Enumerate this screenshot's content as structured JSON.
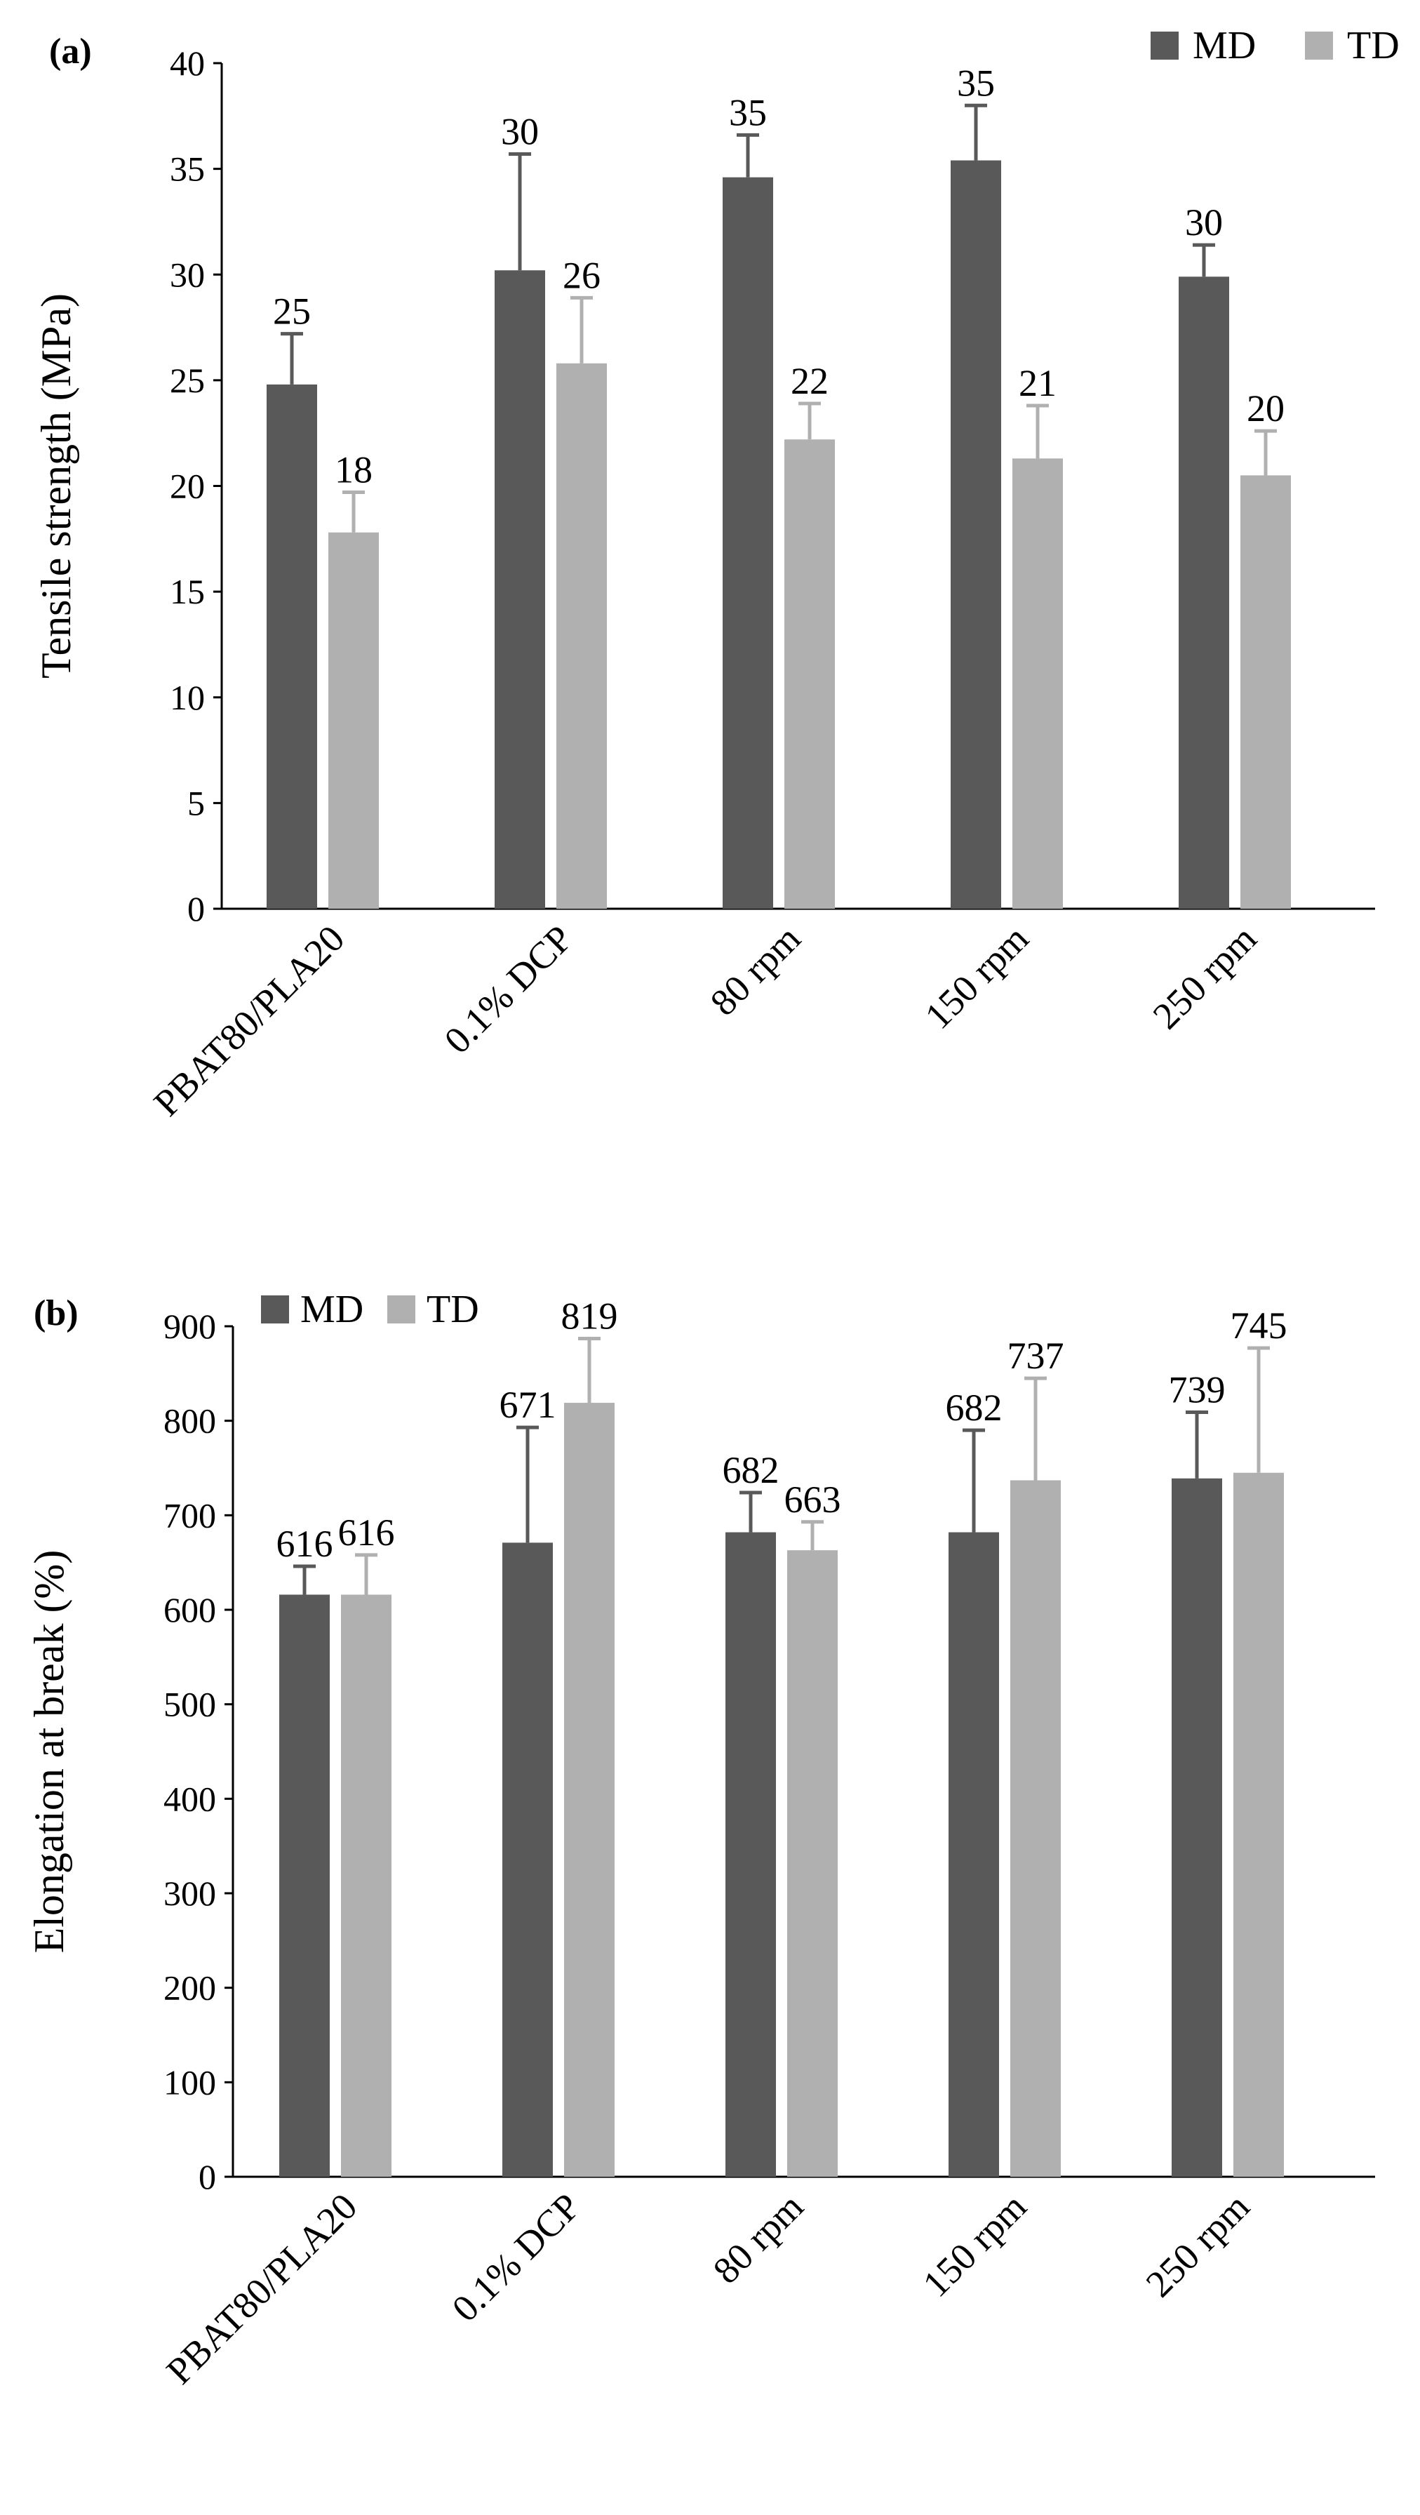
{
  "chart_data": [
    {
      "type": "bar",
      "panel_label": "(a)",
      "title": "",
      "ylabel": "Tensile strength (MPa)",
      "xlabel": "",
      "ylim": [
        0,
        40
      ],
      "yticks": [
        "0",
        "5",
        "10",
        "15",
        "20",
        "25",
        "30",
        "35",
        "40"
      ],
      "categories": [
        "PBAT80/PLA20",
        "0.1% DCP",
        "80 rpm",
        "150 rpm",
        "250 rpm"
      ],
      "legend_position": "top-right",
      "series": [
        {
          "name": "MD",
          "color": "#595959",
          "values": [
            24.8,
            30.2,
            34.6,
            35.4,
            29.9
          ],
          "errors": [
            2.4,
            5.5,
            2.0,
            2.6,
            1.5
          ],
          "labels": [
            "25",
            "30",
            "35",
            "35",
            "30"
          ]
        },
        {
          "name": "TD",
          "color": "#b0b0b0",
          "values": [
            17.8,
            25.8,
            22.2,
            21.3,
            20.5
          ],
          "errors": [
            1.9,
            3.1,
            1.7,
            2.5,
            2.1
          ],
          "labels": [
            "18",
            "26",
            "22",
            "21",
            "20"
          ]
        }
      ]
    },
    {
      "type": "bar",
      "panel_label": "(b)",
      "title": "",
      "ylabel": "Elongation at break (%)",
      "xlabel": "",
      "ylim": [
        0,
        900
      ],
      "yticks": [
        "0",
        "100",
        "200",
        "300",
        "400",
        "500",
        "600",
        "700",
        "800",
        "900"
      ],
      "categories": [
        "PBAT80/PLA20",
        "0.1% DCP",
        "80 rpm",
        "150 rpm",
        "250 rpm"
      ],
      "legend_position": "top-left",
      "series": [
        {
          "name": "MD",
          "color": "#595959",
          "values": [
            616,
            671,
            682,
            682,
            739
          ],
          "errors": [
            30,
            122,
            42,
            108,
            70
          ],
          "labels": [
            "616",
            "671",
            "682",
            "682",
            "739"
          ]
        },
        {
          "name": "TD",
          "color": "#b0b0b0",
          "values": [
            616,
            819,
            663,
            737,
            745
          ],
          "errors": [
            42,
            68,
            30,
            108,
            132
          ],
          "labels": [
            "616",
            "819",
            "663",
            "737",
            "745"
          ]
        }
      ]
    }
  ]
}
